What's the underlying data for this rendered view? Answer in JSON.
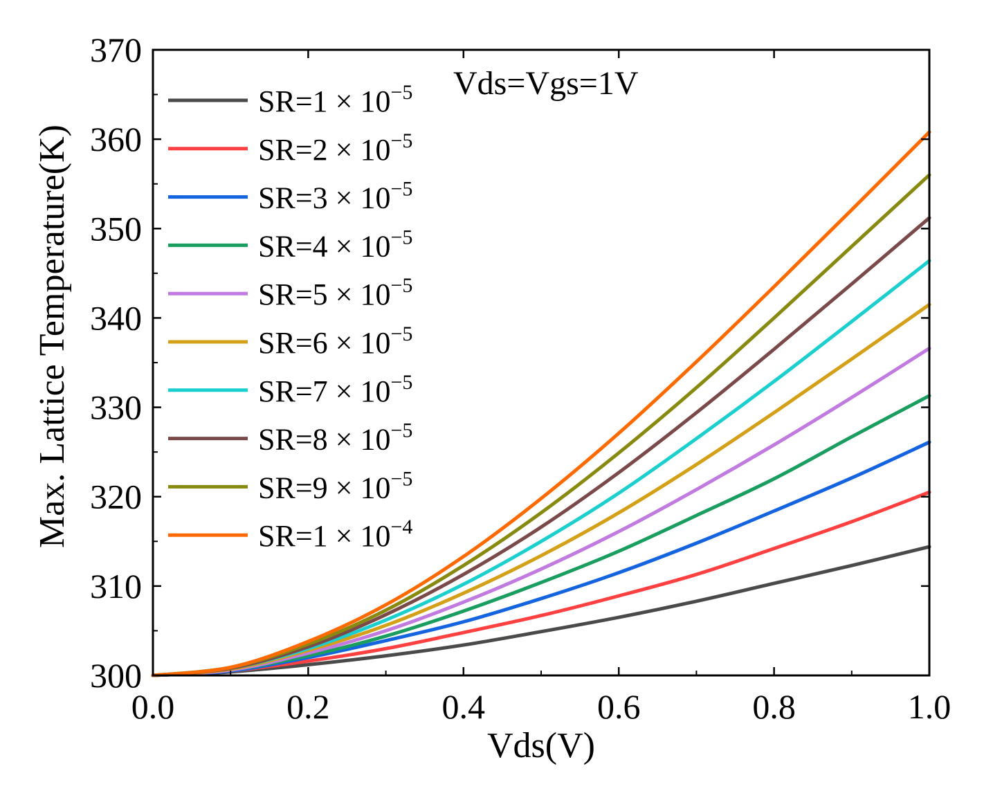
{
  "chart_data": {
    "type": "line",
    "title": "",
    "annotation": "Vds=Vgs=1V",
    "xlabel": "Vds(V)",
    "ylabel": "Max. Lattice Temperature(K)",
    "xlim": [
      0,
      1.0
    ],
    "ylim": [
      300,
      370
    ],
    "xticks": [
      "0.0",
      "0.2",
      "0.4",
      "0.6",
      "0.8",
      "1.0"
    ],
    "yticks": [
      "300",
      "310",
      "320",
      "330",
      "340",
      "350",
      "360",
      "370"
    ],
    "grid": false,
    "legend_position": "top-left",
    "x": [
      0.0,
      0.1,
      0.2,
      0.3,
      0.4,
      0.5,
      0.6,
      0.7,
      0.8,
      0.9,
      1.0
    ],
    "series": [
      {
        "name": "SR=1 × 10",
        "exp": "−5",
        "color": "#4a4a4a",
        "values": [
          300.0,
          300.4,
          301.2,
          302.2,
          303.4,
          304.9,
          306.5,
          308.3,
          310.3,
          312.3,
          314.4
        ]
      },
      {
        "name": "SR=2 × 10",
        "exp": "−5",
        "color": "#ff4040",
        "values": [
          300.0,
          300.5,
          301.6,
          303.0,
          304.8,
          306.7,
          308.9,
          311.3,
          314.2,
          317.2,
          320.5
        ]
      },
      {
        "name": "SR=3 × 10",
        "exp": "−5",
        "color": "#1464e0",
        "values": [
          300.0,
          300.5,
          302.0,
          303.9,
          306.0,
          308.6,
          311.5,
          314.8,
          318.4,
          322.1,
          326.1
        ]
      },
      {
        "name": "SR=4 × 10",
        "exp": "−5",
        "color": "#1a9e60",
        "values": [
          300.0,
          300.6,
          302.2,
          304.4,
          307.2,
          310.4,
          313.9,
          317.9,
          322.0,
          326.7,
          331.3
        ]
      },
      {
        "name": "SR=5 × 10",
        "exp": "−5",
        "color": "#c07ae0",
        "values": [
          300.0,
          300.6,
          302.5,
          305.0,
          308.2,
          311.9,
          316.1,
          320.8,
          325.8,
          331.1,
          336.6
        ]
      },
      {
        "name": "SR=6 × 10",
        "exp": "−5",
        "color": "#d4a017",
        "values": [
          300.0,
          300.7,
          302.8,
          305.6,
          309.2,
          313.4,
          318.2,
          323.6,
          329.4,
          335.4,
          341.5
        ]
      },
      {
        "name": "SR=7 × 10",
        "exp": "−5",
        "color": "#1ccfcf",
        "values": [
          300.0,
          300.8,
          303.0,
          306.2,
          310.2,
          315.0,
          320.4,
          326.5,
          332.9,
          339.6,
          346.4
        ]
      },
      {
        "name": "SR=8 × 10",
        "exp": "−5",
        "color": "#7a4a4a",
        "values": [
          300.0,
          300.8,
          303.2,
          306.8,
          311.3,
          316.6,
          322.7,
          329.4,
          336.5,
          343.8,
          351.2
        ]
      },
      {
        "name": "SR=9 × 10",
        "exp": "−5",
        "color": "#888a10",
        "values": [
          300.0,
          300.9,
          303.5,
          307.3,
          312.3,
          318.2,
          324.9,
          332.2,
          340.0,
          348.0,
          356.0
        ]
      },
      {
        "name": "SR=1 × 10",
        "exp": "−4",
        "color": "#ff6a00",
        "values": [
          300.0,
          300.9,
          303.8,
          307.9,
          313.3,
          319.8,
          327.1,
          335.1,
          343.5,
          352.1,
          360.8
        ]
      }
    ]
  }
}
